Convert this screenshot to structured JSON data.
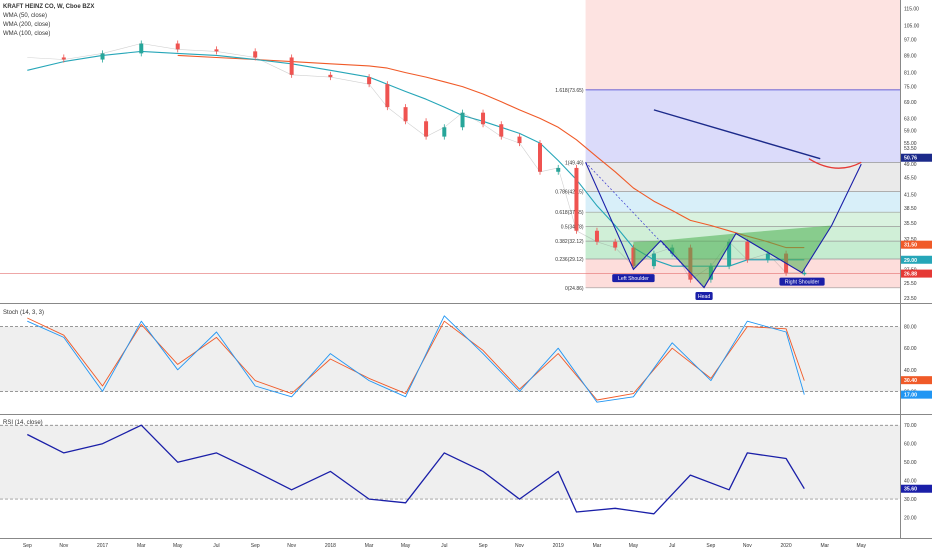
{
  "header": {
    "symbol_line": "KRAFT HEINZ CO, W, Cboe BZX",
    "indicators": [
      "WMA (50, close)",
      "WMA (200, close)",
      "WMA (100, close)"
    ]
  },
  "panes": {
    "stoch_title": "Stoch (14, 3, 3)",
    "rsi_title": "RSI (14, close)"
  },
  "x_axis": {
    "labels": [
      "Sep",
      "Nov",
      "2017",
      "Mar",
      "May",
      "Jul",
      "Sep",
      "Nov",
      "2018",
      "Mar",
      "May",
      "Jul",
      "Sep",
      "Nov",
      "2019",
      "Mar",
      "May",
      "Jul",
      "Sep",
      "Nov",
      "2020",
      "Mar",
      "May"
    ]
  },
  "chart_data": [
    {
      "type": "line",
      "title": "KRAFT HEINZ CO, W, Cboe BZX",
      "ylabel": "",
      "scale": "log",
      "ylim": [
        23,
        118
      ],
      "y_ticks": [
        115.0,
        105.0,
        97.0,
        89.0,
        81.0,
        75.0,
        69.0,
        63.0,
        59.0,
        55.0,
        53.5,
        49.0,
        45.5,
        41.5,
        38.5,
        35.5,
        32.5,
        29.0,
        27.5,
        25.5,
        23.5
      ],
      "x": [
        2016.67,
        2016.83,
        2017.0,
        2017.17,
        2017.33,
        2017.5,
        2017.67,
        2017.83,
        2018.0,
        2018.17,
        2018.25,
        2018.33,
        2018.42,
        2018.5,
        2018.58,
        2018.67,
        2018.75,
        2018.83,
        2018.92,
        2019.0,
        2019.08,
        2019.17,
        2019.25,
        2019.33,
        2019.42,
        2019.5,
        2019.58,
        2019.67,
        2019.75,
        2019.83,
        2019.92,
        2020.0,
        2020.08
      ],
      "series": [
        {
          "name": "Price",
          "values": [
            88,
            87,
            90,
            95,
            92,
            91,
            88,
            80,
            79,
            76,
            67,
            62,
            57,
            60,
            65,
            61,
            57,
            55,
            47,
            48,
            34,
            32,
            31,
            28,
            30,
            31,
            26,
            28,
            32,
            29,
            30,
            27,
            27
          ]
        },
        {
          "name": "WMA (50, close)",
          "values": [
            82,
            86,
            89,
            91,
            90,
            89,
            87,
            85,
            82,
            79,
            76,
            73,
            70,
            67,
            64,
            62,
            60,
            58,
            55,
            50,
            45,
            39,
            35,
            31,
            29,
            28,
            28,
            28,
            28,
            29,
            29,
            29,
            29
          ]
        },
        {
          "name": "WMA (200, close)",
          "values": [
            null,
            null,
            null,
            null,
            89,
            88,
            87,
            86,
            85,
            84,
            83,
            81,
            79,
            77,
            75,
            72,
            69,
            66,
            63,
            60,
            56,
            51,
            47,
            43,
            40,
            38,
            36,
            35,
            34,
            33,
            32,
            31,
            31
          ]
        }
      ],
      "annotations": {
        "fibonacci": [
          {
            "label": "1.618(73.65)",
            "value": 73.65
          },
          {
            "label": "1(49.46)",
            "value": 49.46
          },
          {
            "label": "0.786(42.15)",
            "value": 42.15
          },
          {
            "label": "0.618(37.65)",
            "value": 37.65
          },
          {
            "label": "0.5(34.78)",
            "value": 34.78
          },
          {
            "label": "0.382(32.12)",
            "value": 32.12
          },
          {
            "label": "0.236(29.12)",
            "value": 29.12
          },
          {
            "label": "0(24.86)",
            "value": 24.86
          }
        ],
        "pattern_labels": [
          "Left Shoulder",
          "Head",
          "Right Shoulder"
        ],
        "price_tags": [
          {
            "label": "50.76",
            "value": 50.76,
            "color": "#1b2a8a"
          },
          {
            "label": "31.50",
            "value": 31.5,
            "color": "#f05a28"
          },
          {
            "label": "29.00",
            "value": 29.0,
            "color": "#26a6b8"
          },
          {
            "label": "26.88",
            "value": 26.88,
            "color": "#e53935"
          }
        ]
      }
    },
    {
      "type": "line",
      "title": "Stoch (14, 3, 3)",
      "ylim": [
        0,
        100
      ],
      "y_ticks": [
        80.0,
        60.0,
        40.0,
        20.0
      ],
      "bands": [
        20,
        80
      ],
      "x": [
        2016.67,
        2016.83,
        2017.0,
        2017.17,
        2017.33,
        2017.5,
        2017.67,
        2017.83,
        2018.0,
        2018.17,
        2018.33,
        2018.5,
        2018.67,
        2018.83,
        2019.0,
        2019.17,
        2019.33,
        2019.5,
        2019.67,
        2019.83,
        2020.0,
        2020.08
      ],
      "series": [
        {
          "name": "%K",
          "values": [
            85,
            70,
            20,
            85,
            40,
            75,
            25,
            15,
            55,
            30,
            15,
            90,
            55,
            20,
            60,
            10,
            15,
            65,
            30,
            85,
            75,
            17
          ]
        },
        {
          "name": "%D",
          "values": [
            88,
            72,
            25,
            82,
            45,
            70,
            30,
            18,
            50,
            32,
            18,
            85,
            58,
            22,
            55,
            12,
            18,
            60,
            32,
            80,
            78,
            30
          ]
        }
      ],
      "price_tags": [
        {
          "label": "30.40",
          "value": 30.4,
          "color": "#f05a28"
        },
        {
          "label": "17.00",
          "value": 17.0,
          "color": "#2196f3"
        }
      ]
    },
    {
      "type": "line",
      "title": "RSI (14, close)",
      "ylim": [
        10,
        75
      ],
      "y_ticks": [
        70.0,
        60.0,
        50.0,
        40.0,
        30.0,
        20.0
      ],
      "bands": [
        30,
        70
      ],
      "x": [
        2016.67,
        2016.83,
        2017.0,
        2017.17,
        2017.33,
        2017.5,
        2017.67,
        2017.83,
        2018.0,
        2018.17,
        2018.33,
        2018.5,
        2018.67,
        2018.83,
        2019.0,
        2019.08,
        2019.25,
        2019.42,
        2019.58,
        2019.75,
        2019.83,
        2020.0,
        2020.08
      ],
      "series": [
        {
          "name": "RSI",
          "values": [
            65,
            55,
            60,
            70,
            50,
            55,
            45,
            35,
            45,
            30,
            28,
            55,
            45,
            30,
            45,
            23,
            25,
            22,
            43,
            35,
            55,
            52,
            35.6
          ]
        }
      ],
      "price_tags": [
        {
          "label": "35.60",
          "value": 35.6,
          "color": "#1a1fa8"
        }
      ]
    }
  ]
}
